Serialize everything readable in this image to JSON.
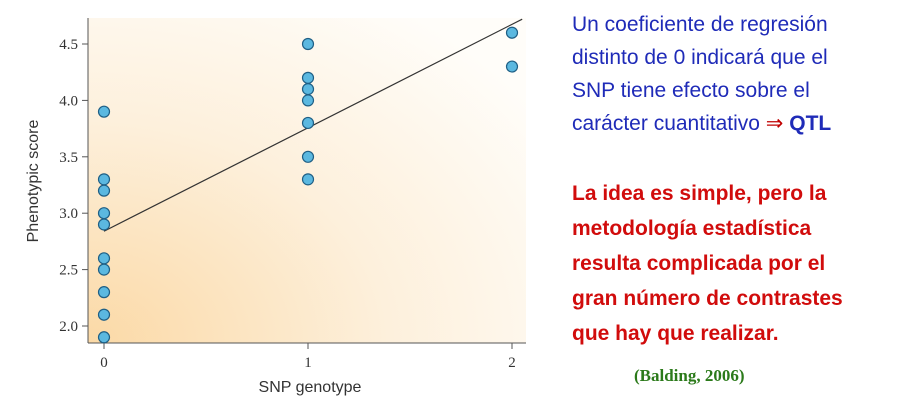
{
  "chart_data": {
    "type": "scatter",
    "xlabel": "SNP genotype",
    "ylabel": "Phenotypic score",
    "xlim": [
      -0.05,
      2.05
    ],
    "ylim": [
      1.85,
      4.75
    ],
    "x_ticks": [
      0,
      1,
      2
    ],
    "x_tick_labels": [
      "0",
      "1",
      "2"
    ],
    "y_ticks": [
      2.0,
      2.5,
      3.0,
      3.5,
      4.0,
      4.5
    ],
    "y_tick_labels": [
      "2.0",
      "2.5",
      "3.0",
      "3.5",
      "4.0",
      "4.5"
    ],
    "points": [
      {
        "x": 0,
        "y": 3.9
      },
      {
        "x": 0,
        "y": 3.3
      },
      {
        "x": 0,
        "y": 3.2
      },
      {
        "x": 0,
        "y": 3.0
      },
      {
        "x": 0,
        "y": 2.9
      },
      {
        "x": 0,
        "y": 2.6
      },
      {
        "x": 0,
        "y": 2.5
      },
      {
        "x": 0,
        "y": 2.3
      },
      {
        "x": 0,
        "y": 2.1
      },
      {
        "x": 0,
        "y": 1.9
      },
      {
        "x": 1,
        "y": 4.5
      },
      {
        "x": 1,
        "y": 4.2
      },
      {
        "x": 1,
        "y": 4.1
      },
      {
        "x": 1,
        "y": 4.0
      },
      {
        "x": 1,
        "y": 3.8
      },
      {
        "x": 1,
        "y": 3.5
      },
      {
        "x": 1,
        "y": 3.3
      },
      {
        "x": 2,
        "y": 4.6
      },
      {
        "x": 2,
        "y": 4.3
      }
    ],
    "regression_line": {
      "x": [
        0,
        2.05
      ],
      "y": [
        2.84,
        4.72
      ]
    },
    "grid": false,
    "point_color": "#5bb8e0",
    "point_edge_color": "#1f5f85"
  },
  "side_text": {
    "blue_lines": [
      "Un coeficiente de regresión",
      "distinto de 0 indicará que el",
      "SNP tiene efecto sobre el",
      "carácter cuantitativo"
    ],
    "arrow": "⇒",
    "qtl": "QTL",
    "red_lines": [
      "La idea es simple, pero la",
      "metodología estadística",
      "resulta complicada por el",
      "gran número de contrastes",
      "que hay que realizar."
    ],
    "citation": "(Balding, 2006)"
  }
}
